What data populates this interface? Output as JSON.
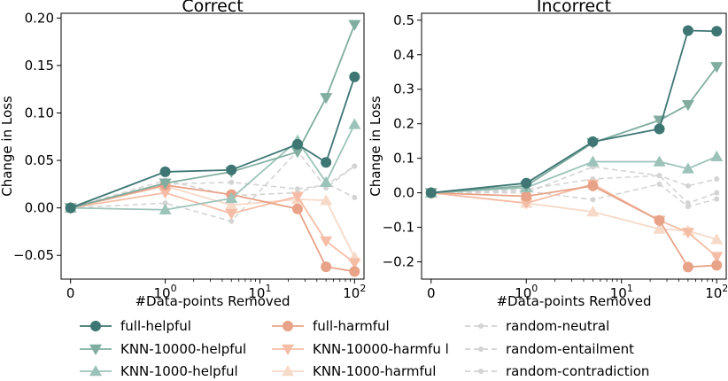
{
  "chart_data": {
    "type": "line",
    "x_scale": "symlog",
    "x_ticks": [
      {
        "value": 0,
        "label": "0"
      },
      {
        "value": 1,
        "label": "10",
        "sup": "0"
      },
      {
        "value": 10,
        "label": "10",
        "sup": "1"
      },
      {
        "value": 100,
        "label": "10",
        "sup": "2"
      }
    ],
    "x": [
      0,
      1,
      5,
      25,
      50,
      100
    ],
    "legend": {
      "placement": "bottom",
      "columns": 3
    },
    "panels": [
      {
        "title": "Correct",
        "xlabel": "#Data-points Removed",
        "ylabel": "Change in Loss",
        "ylim": [
          -0.075,
          0.205
        ],
        "y_ticks": [
          {
            "value": -0.05,
            "label": "−0.05"
          },
          {
            "value": 0.0,
            "label": "0.00"
          },
          {
            "value": 0.05,
            "label": "0.05"
          },
          {
            "value": 0.1,
            "label": "0.10"
          },
          {
            "value": 0.15,
            "label": "0.15"
          },
          {
            "value": 0.2,
            "label": "0.20"
          }
        ],
        "series": [
          {
            "name": "random-neutral",
            "color": "#d4d4d4",
            "marker": "dot",
            "dashed": true,
            "values": [
              0.0,
              0.025,
              0.027,
              0.02,
              0.024,
              0.044
            ]
          },
          {
            "name": "random-entailment",
            "color": "#d4d4d4",
            "marker": "dot",
            "dashed": true,
            "values": [
              0.0,
              0.005,
              -0.014,
              0.06,
              0.021,
              0.044
            ]
          },
          {
            "name": "random-contradiction",
            "color": "#d4d4d4",
            "marker": "dot",
            "dashed": true,
            "values": [
              0.0,
              0.029,
              0.013,
              0.016,
              0.026,
              0.011
            ]
          },
          {
            "name": "KNN-1000-harmful",
            "color": "#f7d9c7",
            "marker": "triangle-up",
            "dashed": false,
            "values": [
              0.0,
              0.023,
              0.003,
              0.009,
              0.008,
              -0.052
            ]
          },
          {
            "name": "KNN-10000-harmfu l",
            "color": "#f6bda6",
            "marker": "triangle-down",
            "dashed": false,
            "values": [
              0.0,
              0.016,
              -0.006,
              0.012,
              -0.035,
              -0.058
            ]
          },
          {
            "name": "full-harmful",
            "color": "#e8a287",
            "marker": "circle",
            "dashed": false,
            "values": [
              0.0,
              0.024,
              0.014,
              -0.001,
              -0.062,
              -0.067
            ]
          },
          {
            "name": "KNN-1000-helpful",
            "color": "#9cc3b9",
            "marker": "triangle-up",
            "dashed": false,
            "values": [
              0.0,
              -0.002,
              0.01,
              0.071,
              0.027,
              0.088
            ]
          },
          {
            "name": "KNN-10000-helpful",
            "color": "#80ad9f",
            "marker": "triangle-down",
            "dashed": false,
            "values": [
              0.0,
              0.026,
              0.038,
              0.059,
              0.116,
              0.193
            ]
          },
          {
            "name": "full-helpful",
            "color": "#3d7673",
            "marker": "circle",
            "dashed": false,
            "values": [
              0.0,
              0.038,
              0.04,
              0.067,
              0.048,
              0.138
            ]
          }
        ]
      },
      {
        "title": "Incorrect",
        "xlabel": "#Data-points Removed",
        "ylabel": "Change in Loss",
        "ylim": [
          -0.25,
          0.52
        ],
        "y_ticks": [
          {
            "value": -0.2,
            "label": "−0.2"
          },
          {
            "value": -0.1,
            "label": "−0.1"
          },
          {
            "value": 0.0,
            "label": "0.0"
          },
          {
            "value": 0.1,
            "label": "0.1"
          },
          {
            "value": 0.2,
            "label": "0.2"
          },
          {
            "value": 0.3,
            "label": "0.3"
          },
          {
            "value": 0.4,
            "label": "0.4"
          },
          {
            "value": 0.5,
            "label": "0.5"
          }
        ],
        "series": [
          {
            "name": "random-neutral",
            "color": "#d4d4d4",
            "marker": "dot",
            "dashed": true,
            "values": [
              0.0,
              0.0,
              0.075,
              0.05,
              0.02,
              0.04
            ]
          },
          {
            "name": "random-entailment",
            "color": "#d4d4d4",
            "marker": "dot",
            "dashed": true,
            "values": [
              0.0,
              0.005,
              -0.02,
              0.025,
              -0.04,
              -0.018
            ]
          },
          {
            "name": "random-contradiction",
            "color": "#d4d4d4",
            "marker": "dot",
            "dashed": true,
            "values": [
              0.0,
              0.01,
              0.04,
              0.05,
              -0.03,
              0.0
            ]
          },
          {
            "name": "KNN-1000-harmful",
            "color": "#f7d9c7",
            "marker": "triangle-up",
            "dashed": false,
            "values": [
              0.0,
              -0.03,
              -0.055,
              -0.105,
              -0.11,
              -0.135
            ]
          },
          {
            "name": "KNN-10000-harmfu l",
            "color": "#f6bda6",
            "marker": "triangle-down",
            "dashed": false,
            "values": [
              0.0,
              -0.03,
              0.025,
              -0.08,
              -0.115,
              -0.185
            ]
          },
          {
            "name": "full-harmful",
            "color": "#e8a287",
            "marker": "circle",
            "dashed": false,
            "values": [
              0.0,
              -0.01,
              0.02,
              -0.08,
              -0.215,
              -0.21
            ]
          },
          {
            "name": "KNN-1000-helpful",
            "color": "#9cc3b9",
            "marker": "triangle-up",
            "dashed": false,
            "values": [
              0.0,
              0.015,
              0.09,
              0.09,
              0.07,
              0.105
            ]
          },
          {
            "name": "KNN-10000-helpful",
            "color": "#80ad9f",
            "marker": "triangle-down",
            "dashed": false,
            "values": [
              0.0,
              0.02,
              0.145,
              0.21,
              0.255,
              0.365
            ]
          },
          {
            "name": "full-helpful",
            "color": "#3d7673",
            "marker": "circle",
            "dashed": false,
            "values": [
              0.0,
              0.028,
              0.148,
              0.185,
              0.47,
              0.468
            ]
          }
        ]
      }
    ],
    "legend_items": [
      {
        "name": "full-helpful",
        "color": "#3d7673",
        "marker": "circle",
        "dashed": false
      },
      {
        "name": "KNN-10000-helpful",
        "color": "#80ad9f",
        "marker": "triangle-down",
        "dashed": false
      },
      {
        "name": "KNN-1000-helpful",
        "color": "#9cc3b9",
        "marker": "triangle-up",
        "dashed": false
      },
      {
        "name": "full-harmful",
        "color": "#e8a287",
        "marker": "circle",
        "dashed": false
      },
      {
        "name": "KNN-10000-harmfu l",
        "color": "#f6bda6",
        "marker": "triangle-down",
        "dashed": false
      },
      {
        "name": "KNN-1000-harmful",
        "color": "#f7d9c7",
        "marker": "triangle-up",
        "dashed": false
      },
      {
        "name": "random-neutral",
        "color": "#d4d4d4",
        "marker": "dot",
        "dashed": true
      },
      {
        "name": "random-entailment",
        "color": "#d4d4d4",
        "marker": "dot",
        "dashed": true
      },
      {
        "name": "random-contradiction",
        "color": "#d4d4d4",
        "marker": "dot",
        "dashed": true
      }
    ]
  }
}
